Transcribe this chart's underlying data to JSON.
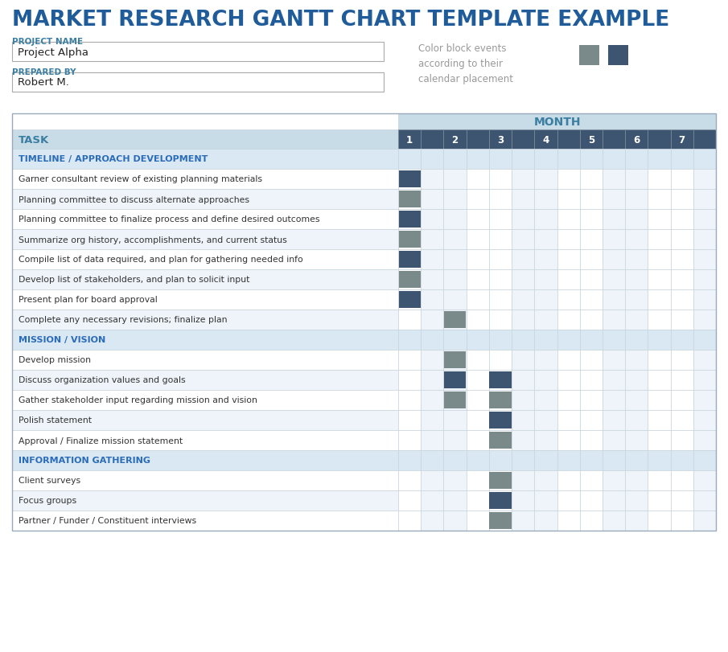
{
  "title": "MARKET RESEARCH GANTT CHART TEMPLATE EXAMPLE",
  "title_color": "#1F5C99",
  "project_name_label": "PROJECT NAME",
  "project_name_value": "Project Alpha",
  "prepared_by_label": "PREPARED BY",
  "prepared_by_value": "Robert M.",
  "legend_text": "Color block events\naccording to their\ncalendar placement",
  "month_label": "MONTH",
  "month_header_bg": "#C8DCE8",
  "month_header_color": "#3B7EA1",
  "task_header_bg": "#C8DCE8",
  "task_header_color": "#3B7EA1",
  "months": [
    "1",
    "2",
    "3",
    "4",
    "5",
    "6",
    "7"
  ],
  "month_col_header_dark": "#3D5570",
  "month_col_header_light": "#3D5570",
  "section_bg": "#DAE8F4",
  "section_color": "#2B6CB8",
  "row_a_bg": "#FFFFFF",
  "row_b_bg": "#EEF4F9",
  "grid_line_color": "#C8D4DC",
  "dark_blue": "#3D5570",
  "gray_block": "#7A8A8A",
  "tasks": [
    {
      "name": "TIMELINE / APPROACH DEVELOPMENT",
      "type": "section",
      "blocks": []
    },
    {
      "name": "Garner consultant review of existing planning materials",
      "type": "task",
      "blocks": [
        {
          "col": 0,
          "color": "dark_blue"
        }
      ]
    },
    {
      "name": "Planning committee to discuss alternate approaches",
      "type": "task",
      "blocks": [
        {
          "col": 0,
          "color": "gray"
        }
      ]
    },
    {
      "name": "Planning committee to finalize process and define desired outcomes",
      "type": "task",
      "blocks": [
        {
          "col": 0,
          "color": "dark_blue"
        }
      ]
    },
    {
      "name": "Summarize org history, accomplishments, and current status",
      "type": "task",
      "blocks": [
        {
          "col": 0,
          "color": "gray"
        }
      ]
    },
    {
      "name": "Compile list of data required, and plan for gathering needed info",
      "type": "task",
      "blocks": [
        {
          "col": 0,
          "color": "dark_blue"
        }
      ]
    },
    {
      "name": "Develop list of stakeholders, and plan to solicit input",
      "type": "task",
      "blocks": [
        {
          "col": 0,
          "color": "gray"
        }
      ]
    },
    {
      "name": "Present plan for board approval",
      "type": "task",
      "blocks": [
        {
          "col": 0,
          "color": "dark_blue"
        }
      ]
    },
    {
      "name": "Complete any necessary revisions; finalize plan",
      "type": "task",
      "blocks": [
        {
          "col": 1,
          "color": "gray"
        }
      ]
    },
    {
      "name": "MISSION / VISION",
      "type": "section",
      "blocks": []
    },
    {
      "name": "Develop mission",
      "type": "task",
      "blocks": [
        {
          "col": 1,
          "color": "gray"
        }
      ]
    },
    {
      "name": "Discuss organization values and goals",
      "type": "task",
      "blocks": [
        {
          "col": 1,
          "color": "dark_blue"
        },
        {
          "col": 2,
          "color": "dark_blue"
        }
      ]
    },
    {
      "name": "Gather stakeholder input regarding mission and vision",
      "type": "task",
      "blocks": [
        {
          "col": 1,
          "color": "gray"
        },
        {
          "col": 2,
          "color": "gray"
        }
      ]
    },
    {
      "name": "Polish statement",
      "type": "task",
      "blocks": [
        {
          "col": 2,
          "color": "dark_blue"
        }
      ]
    },
    {
      "name": "Approval / Finalize mission statement",
      "type": "task",
      "blocks": [
        {
          "col": 2,
          "color": "gray"
        }
      ]
    },
    {
      "name": "INFORMATION GATHERING",
      "type": "section",
      "blocks": []
    },
    {
      "name": "Client surveys",
      "type": "task",
      "blocks": [
        {
          "col": 2,
          "color": "gray"
        }
      ]
    },
    {
      "name": "Focus groups",
      "type": "task",
      "blocks": [
        {
          "col": 2,
          "color": "dark_blue"
        }
      ]
    },
    {
      "name": "Partner / Funder / Constituent interviews",
      "type": "task",
      "blocks": [
        {
          "col": 2,
          "color": "gray"
        }
      ]
    }
  ]
}
